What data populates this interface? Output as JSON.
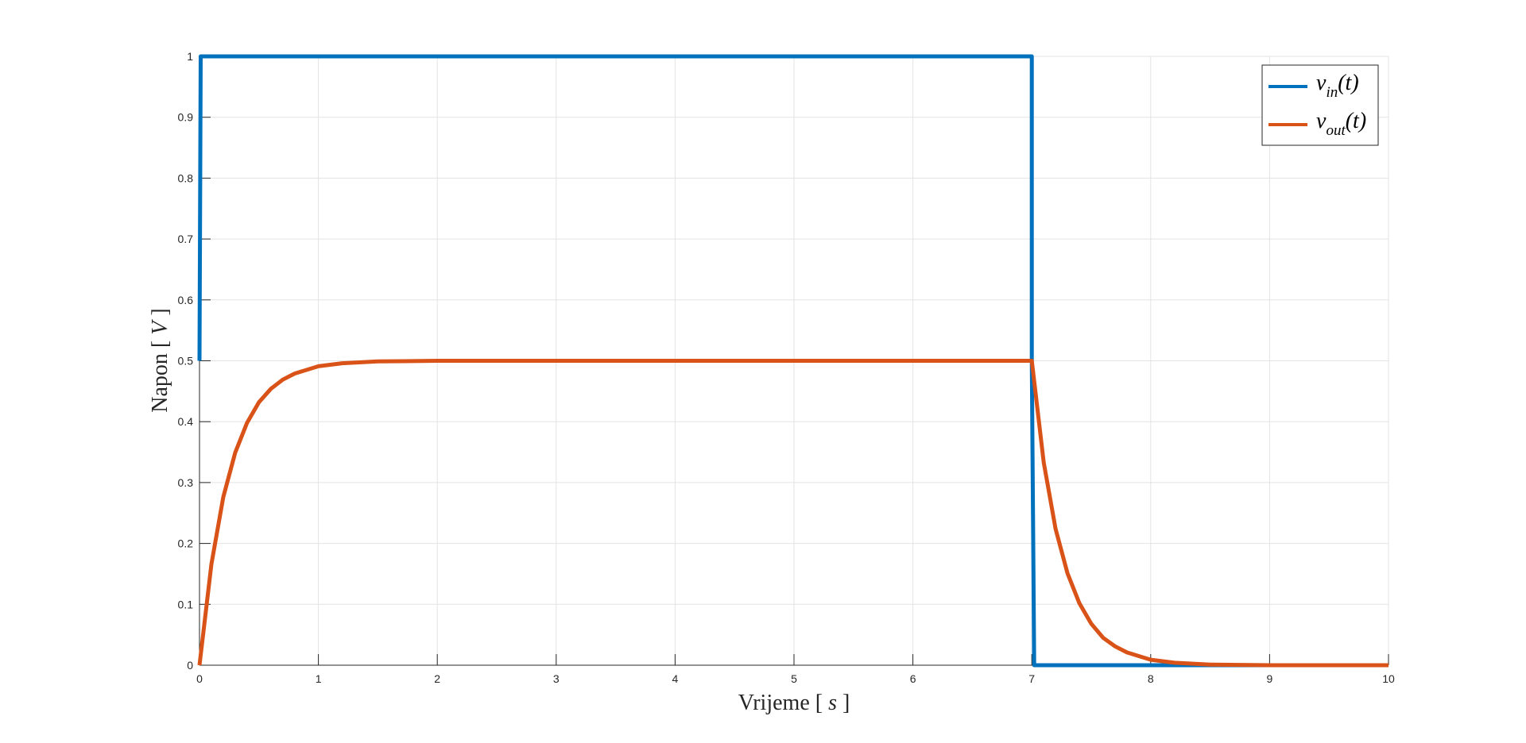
{
  "chart_data": {
    "type": "line",
    "xlabel": {
      "prefix": "Vrijeme [ ",
      "var": "s",
      "suffix": " ]"
    },
    "ylabel": {
      "prefix": "Napon [ ",
      "var": "V",
      "suffix": " ]"
    },
    "xlim": [
      0,
      10
    ],
    "ylim": [
      0,
      1
    ],
    "xticks": [
      "0",
      "1",
      "2",
      "3",
      "4",
      "5",
      "6",
      "7",
      "8",
      "9",
      "10"
    ],
    "yticks": [
      "0",
      "0.1",
      "0.2",
      "0.3",
      "0.4",
      "0.5",
      "0.6",
      "0.7",
      "0.8",
      "0.9",
      "1"
    ],
    "grid": true,
    "legend_position": "top-right",
    "series": [
      {
        "name": "v_in(t)",
        "legend": {
          "base": "v",
          "sub": "in",
          "tail": "(t)"
        },
        "color": "#0072BD",
        "x": [
          0,
          0.01,
          0.02,
          7.0,
          7.0,
          7.02,
          10
        ],
        "y": [
          0.5,
          1,
          1,
          1,
          0.5,
          0,
          0
        ]
      },
      {
        "name": "v_out(t)",
        "legend": {
          "base": "v",
          "sub": "out",
          "tail": "(t)"
        },
        "color": "#D95319",
        "x": [
          0,
          0.1,
          0.2,
          0.3,
          0.4,
          0.5,
          0.6,
          0.7,
          0.8,
          1.0,
          1.2,
          1.5,
          2.0,
          3.0,
          4.0,
          5.0,
          6.0,
          7.0,
          7.1,
          7.2,
          7.3,
          7.4,
          7.5,
          7.6,
          7.7,
          7.8,
          8.0,
          8.2,
          8.5,
          9.0,
          10.0
        ],
        "y": [
          0,
          0.166,
          0.276,
          0.349,
          0.398,
          0.432,
          0.454,
          0.469,
          0.479,
          0.491,
          0.496,
          0.499,
          0.5,
          0.5,
          0.5,
          0.5,
          0.5,
          0.5,
          0.333,
          0.224,
          0.151,
          0.102,
          0.068,
          0.045,
          0.031,
          0.021,
          0.009,
          0.004,
          0.001,
          0.0,
          0.0
        ]
      }
    ]
  }
}
